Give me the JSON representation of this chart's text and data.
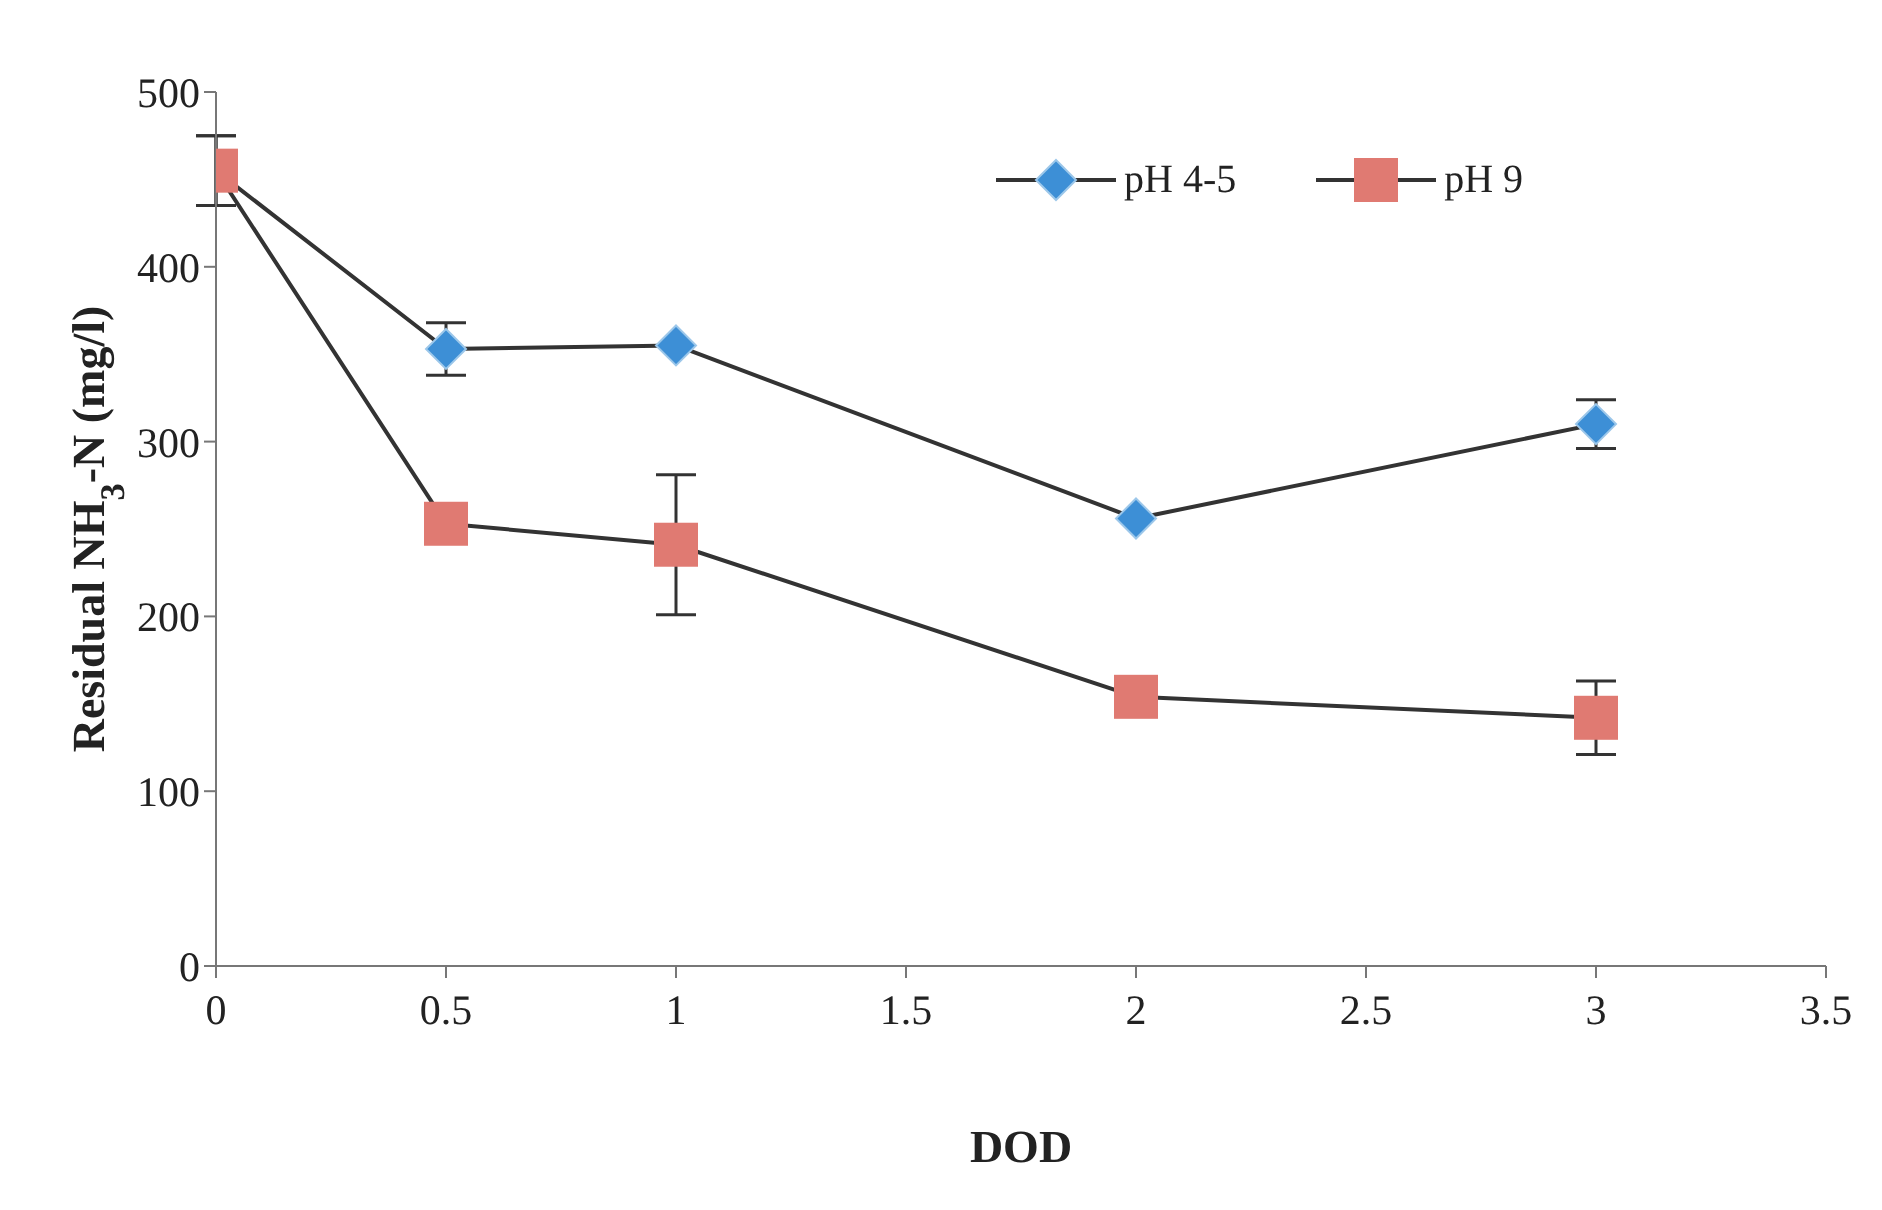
{
  "chart_data": {
    "type": "line",
    "xlabel": "DOD",
    "ylabel": "Residual NH$_{3}$-N (mg/l)",
    "x": [
      0,
      0.5,
      1,
      2,
      3
    ],
    "series": [
      {
        "name": "pH 4-5",
        "color": "#3d8fd6",
        "marker": "diamond",
        "values": [
          455,
          353,
          355,
          256,
          310
        ],
        "errors": [
          20,
          15,
          null,
          null,
          14
        ]
      },
      {
        "name": "pH 9",
        "color": "#e07a72",
        "marker": "square",
        "values": [
          455,
          253,
          241,
          154,
          142
        ],
        "errors": [
          20,
          null,
          40,
          null,
          21
        ]
      }
    ],
    "xlim": [
      0,
      3.5
    ],
    "xticks": [
      0,
      0.5,
      1,
      1.5,
      2,
      2.5,
      3,
      3.5
    ],
    "ylim": [
      0,
      500
    ],
    "yticks": [
      0,
      100,
      200,
      300,
      400,
      500
    ],
    "grid": false,
    "legend": "top right"
  }
}
